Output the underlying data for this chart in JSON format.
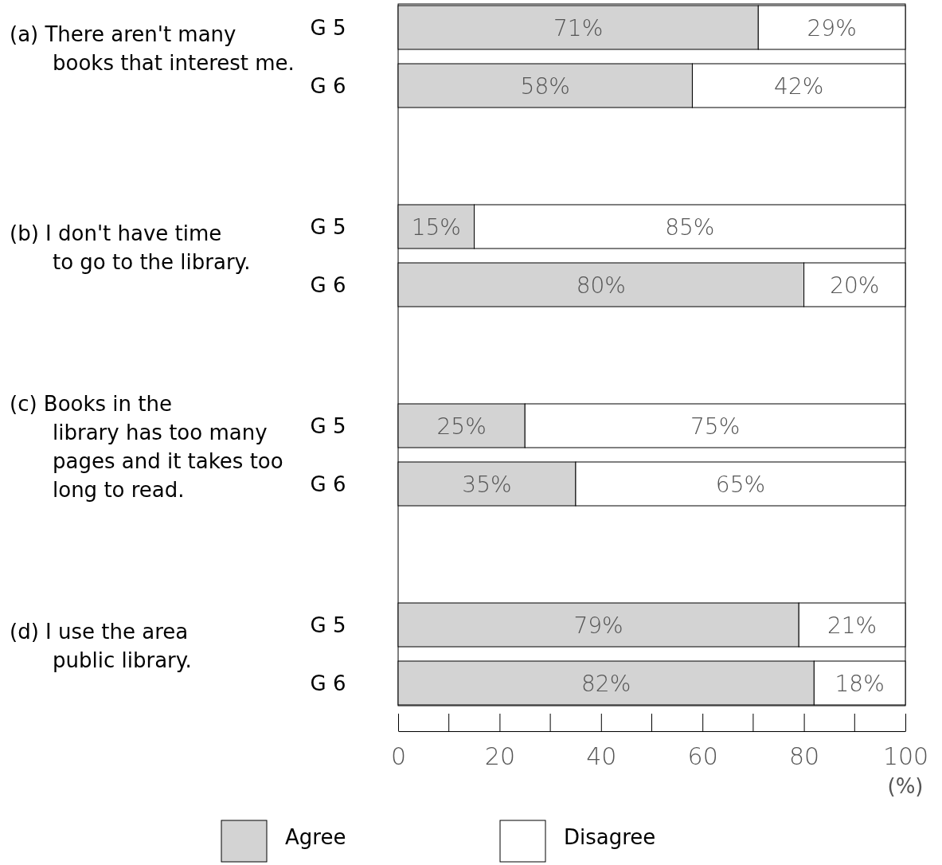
{
  "chart_data": {
    "type": "bar",
    "orientation": "horizontal",
    "stacked": true,
    "legend": "bottom",
    "grid": false,
    "categories": [
      "G 5",
      "G 6",
      "G 5",
      "G 6",
      "G 5",
      "G 6",
      "G 5",
      "G 6"
    ],
    "series": [
      {
        "name": "Agree",
        "color": "#d3d3d3",
        "values": [
          71,
          58,
          15,
          80,
          25,
          35,
          79,
          82
        ],
        "value_labels": [
          "71%",
          "58%",
          "15%",
          "80%",
          "25%",
          "35%",
          "79%",
          "82%"
        ]
      },
      {
        "name": "Disagree",
        "color": "#ffffff",
        "values": [
          29,
          42,
          85,
          20,
          75,
          65,
          21,
          18
        ],
        "value_labels": [
          "29%",
          "42%",
          "85%",
          "20%",
          "75%",
          "65%",
          "21%",
          "18%"
        ]
      }
    ],
    "xlim": [
      0,
      100
    ],
    "xticks": [
      0,
      20,
      40,
      60,
      80,
      100
    ],
    "xlabel": "(%)",
    "annotations": [
      "(a) There aren't many books that interest me.",
      "(b) I don't have time to go to the library.",
      "(c) Books in the library has too many pages and it takes too long to read.",
      "(d) I use the area public library."
    ]
  }
}
